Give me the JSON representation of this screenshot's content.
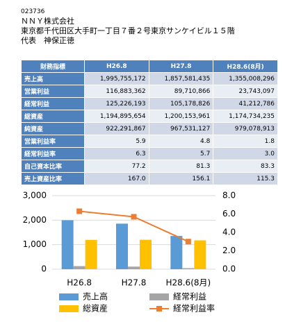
{
  "header": {
    "code": "023736",
    "company": "ＮＮＹ株式会社",
    "address": "東京都千代田区大手町一丁目７番２号東京サンケイビル１５階",
    "representative": "代表　神保正徳"
  },
  "table": {
    "columns": [
      "財務指標",
      "H26.8",
      "H27.8",
      "H28.6(8月)"
    ],
    "rows": [
      [
        "売上高",
        "1,995,755,172",
        "1,857,581,435",
        "1,355,008,296"
      ],
      [
        "営業利益",
        "116,883,362",
        "89,710,866",
        "23,743,097"
      ],
      [
        "経常利益",
        "125,226,193",
        "105,178,826",
        "41,212,786"
      ],
      [
        "総資産",
        "1,194,895,654",
        "1,200,153,961",
        "1,174,734,235"
      ],
      [
        "純資産",
        "922,291,867",
        "967,531,127",
        "979,078,913"
      ],
      [
        "営業利益率",
        "5.9",
        "4.8",
        "1.8"
      ],
      [
        "経常利益率",
        "6.3",
        "5.7",
        "3.0"
      ],
      [
        "自己資本比率",
        "77.2",
        "81.3",
        "83.3"
      ],
      [
        "売上資産比率",
        "167.0",
        "156.1",
        "115.3"
      ]
    ]
  },
  "chart_data": {
    "type": "bar",
    "categories": [
      "H26.8",
      "H27.8",
      "H28.6(8月)"
    ],
    "series": [
      {
        "name": "売上高",
        "color": "#5b9bd5",
        "values": [
          1996,
          1858,
          1355
        ]
      },
      {
        "name": "経常利益",
        "color": "#a5a5a5",
        "values": [
          125,
          105,
          41
        ]
      },
      {
        "name": "総資産",
        "color": "#ffc000",
        "values": [
          1195,
          1200,
          1175
        ]
      },
      {
        "name": "経常利益率",
        "color": "#ed7d31",
        "type": "line",
        "axis": "y2",
        "values": [
          6.3,
          5.7,
          3.0
        ]
      }
    ],
    "ylim": [
      0,
      3000
    ],
    "yticks": [
      0,
      {
        "value": 1000,
        "label": "1,000"
      },
      {
        "value": 2000,
        "label": "2,000"
      },
      {
        "value": 3000,
        "label": "3,000"
      }
    ],
    "y2lim": [
      0,
      8
    ],
    "y2ticks": [
      {
        "value": 0,
        "label": "0.0"
      },
      {
        "value": 2,
        "label": "2.0"
      },
      {
        "value": 4,
        "label": "4.0"
      },
      {
        "value": 6,
        "label": "6.0"
      },
      {
        "value": 8,
        "label": "8.0"
      }
    ],
    "grid": true
  }
}
